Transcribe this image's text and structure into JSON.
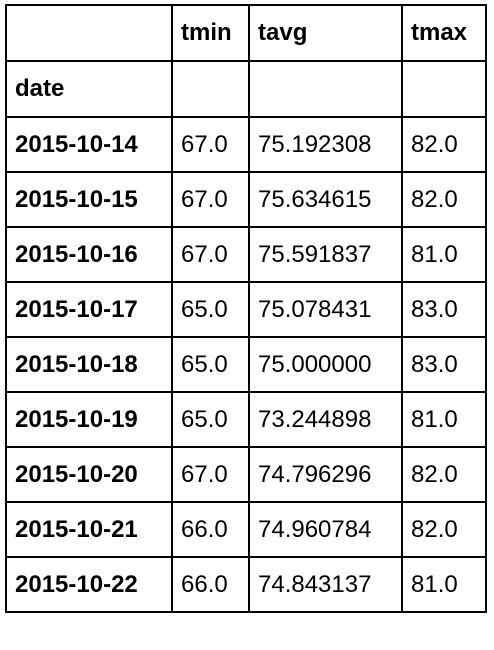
{
  "table": {
    "columns": [
      "tmin",
      "tavg",
      "tmax"
    ],
    "index_name": "date",
    "rows": [
      {
        "date": "2015-10-14",
        "tmin": "67.0",
        "tavg": "75.192308",
        "tmax": "82.0"
      },
      {
        "date": "2015-10-15",
        "tmin": "67.0",
        "tavg": "75.634615",
        "tmax": "82.0"
      },
      {
        "date": "2015-10-16",
        "tmin": "67.0",
        "tavg": "75.591837",
        "tmax": "81.0"
      },
      {
        "date": "2015-10-17",
        "tmin": "65.0",
        "tavg": "75.078431",
        "tmax": "83.0"
      },
      {
        "date": "2015-10-18",
        "tmin": "65.0",
        "tavg": "75.000000",
        "tmax": "83.0"
      },
      {
        "date": "2015-10-19",
        "tmin": "65.0",
        "tavg": "73.244898",
        "tmax": "81.0"
      },
      {
        "date": "2015-10-20",
        "tmin": "67.0",
        "tavg": "74.796296",
        "tmax": "82.0"
      },
      {
        "date": "2015-10-21",
        "tmin": "66.0",
        "tavg": "74.960784",
        "tmax": "82.0"
      },
      {
        "date": "2015-10-22",
        "tmin": "66.0",
        "tavg": "74.843137",
        "tmax": "81.0"
      }
    ]
  }
}
